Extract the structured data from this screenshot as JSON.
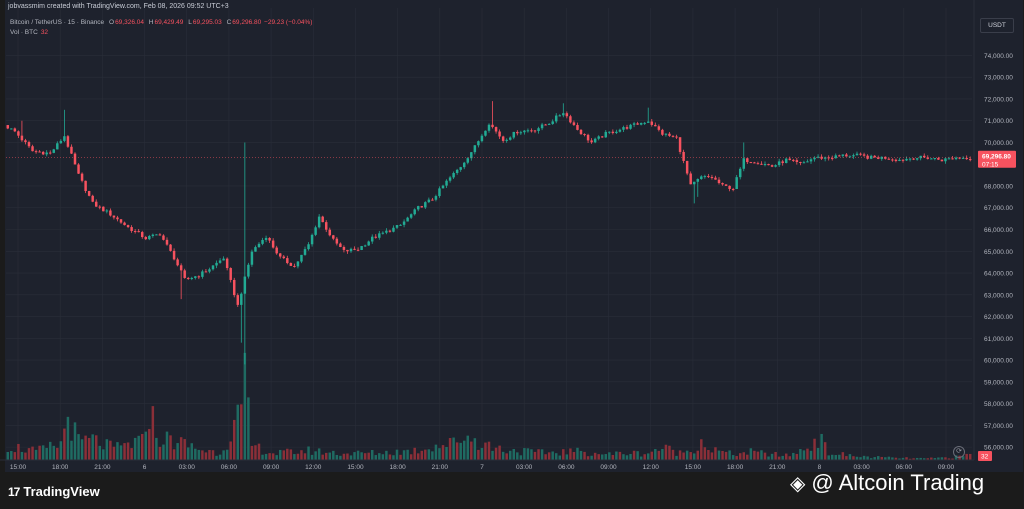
{
  "header": {
    "credit": "jobvassmim created with TradingView.com, Feb 08, 2026 09:52 UTC+3",
    "symbol": "Bitcoin / TetherUS · 15 · Binance",
    "o_label": "O",
    "o_value": "69,326.04",
    "h_label": "H",
    "h_value": "69,429.49",
    "l_label": "L",
    "l_value": "69,295.03",
    "c_label": "C",
    "c_value": "69,296.80",
    "change": "−29.23 (−0.04%)",
    "vol_label": "Vol · BTC",
    "vol_value": "32"
  },
  "currency": "USDT",
  "brand": {
    "logo": "17",
    "name": "TradingView"
  },
  "watermark": {
    "icon": "binance-diamond-icon",
    "text": "@ Altcoin Trading"
  },
  "colors": {
    "up": "#22ab94",
    "down": "#f7525f",
    "vol_up": "#1f6b62",
    "vol_down": "#8b2f38",
    "background": "#1e222d",
    "grid": "#2a2e39"
  },
  "chart_data": {
    "type": "candlestick",
    "y_ticks": [
      "74,000.00",
      "73,000.00",
      "72,000.00",
      "71,000.00",
      "70,000.00",
      "68,000.00",
      "67,000.00",
      "66,000.00",
      "65,000.00",
      "64,000.00",
      "63,000.00",
      "62,000.00",
      "61,000.00",
      "60,000.00",
      "59,000.00",
      "58,000.00",
      "57,000.00",
      "56,000.00"
    ],
    "y_tick_values": [
      74000,
      73000,
      72000,
      71000,
      70000,
      68000,
      67000,
      66000,
      65000,
      64000,
      63000,
      62000,
      61000,
      60000,
      59000,
      58000,
      57000,
      56000
    ],
    "ylim": [
      55500,
      74800
    ],
    "x_ticks": [
      "15:00",
      "18:00",
      "21:00",
      "6",
      "03:00",
      "06:00",
      "09:00",
      "12:00",
      "15:00",
      "18:00",
      "21:00",
      "7",
      "03:00",
      "06:00",
      "09:00",
      "12:00",
      "15:00",
      "18:00",
      "21:00",
      "8",
      "03:00",
      "06:00",
      "09:00"
    ],
    "last_price": "69,296.80",
    "last_price_value": 69296.8,
    "countdown": "07:15",
    "last_volume": "32",
    "anchors": [
      [
        0,
        70800
      ],
      [
        3,
        70500
      ],
      [
        8,
        69600
      ],
      [
        13,
        69500
      ],
      [
        17,
        70300
      ],
      [
        21,
        68500
      ],
      [
        25,
        67200
      ],
      [
        30,
        66700
      ],
      [
        35,
        66100
      ],
      [
        40,
        65600
      ],
      [
        44,
        65800
      ],
      [
        48,
        64700
      ],
      [
        51,
        63700
      ],
      [
        55,
        63900
      ],
      [
        58,
        64200
      ],
      [
        62,
        64700
      ],
      [
        66,
        62500
      ],
      [
        70,
        65000
      ],
      [
        74,
        65700
      ],
      [
        78,
        64700
      ],
      [
        82,
        64300
      ],
      [
        86,
        65300
      ],
      [
        89,
        66600
      ],
      [
        93,
        65500
      ],
      [
        96,
        65000
      ],
      [
        100,
        65100
      ],
      [
        104,
        65600
      ],
      [
        108,
        65900
      ],
      [
        112,
        66200
      ],
      [
        117,
        67000
      ],
      [
        121,
        67400
      ],
      [
        125,
        68200
      ],
      [
        129,
        68900
      ],
      [
        133,
        69800
      ],
      [
        137,
        70900
      ],
      [
        141,
        70100
      ],
      [
        145,
        70500
      ],
      [
        150,
        70600
      ],
      [
        154,
        70900
      ],
      [
        158,
        71400
      ],
      [
        162,
        70600
      ],
      [
        166,
        70000
      ],
      [
        170,
        70400
      ],
      [
        174,
        70600
      ],
      [
        178,
        70800
      ],
      [
        182,
        71000
      ],
      [
        186,
        70400
      ],
      [
        190,
        70200
      ],
      [
        194,
        68000
      ],
      [
        197,
        68400
      ],
      [
        200,
        68400
      ],
      [
        203,
        68000
      ],
      [
        206,
        67900
      ],
      [
        209,
        69200
      ],
      [
        213,
        69100
      ],
      [
        217,
        68900
      ],
      [
        221,
        69200
      ],
      [
        225,
        69000
      ],
      [
        229,
        69300
      ],
      [
        233,
        69300
      ],
      [
        237,
        69400
      ],
      [
        241,
        69400
      ],
      [
        245,
        69300
      ],
      [
        249,
        69300
      ],
      [
        253,
        69200
      ],
      [
        257,
        69300
      ],
      [
        261,
        69300
      ],
      [
        265,
        69200
      ],
      [
        269,
        69300
      ],
      [
        272,
        69300
      ]
    ],
    "spikes": [
      [
        4,
        71000
      ],
      [
        16,
        71500
      ],
      [
        49,
        62800
      ],
      [
        66,
        60800
      ],
      [
        67,
        59800
      ],
      [
        67,
        70000
      ],
      [
        137,
        71900
      ],
      [
        157,
        71800
      ],
      [
        181,
        71600
      ],
      [
        194,
        67200
      ],
      [
        195,
        67500
      ],
      [
        208,
        70000
      ]
    ],
    "volume_ylim": [
      0,
      100
    ],
    "volume_anchors": [
      [
        0,
        20
      ],
      [
        8,
        12
      ],
      [
        15,
        22
      ],
      [
        17,
        62
      ],
      [
        20,
        25
      ],
      [
        24,
        28
      ],
      [
        30,
        16
      ],
      [
        36,
        24
      ],
      [
        38,
        25
      ],
      [
        40,
        78
      ],
      [
        42,
        32
      ],
      [
        48,
        25
      ],
      [
        55,
        14
      ],
      [
        60,
        10
      ],
      [
        66,
        65
      ],
      [
        67,
        100
      ],
      [
        69,
        20
      ],
      [
        75,
        9
      ],
      [
        85,
        13
      ],
      [
        95,
        9
      ],
      [
        105,
        10
      ],
      [
        115,
        13
      ],
      [
        120,
        20
      ],
      [
        125,
        22
      ],
      [
        129,
        34
      ],
      [
        133,
        26
      ],
      [
        137,
        18
      ],
      [
        140,
        15
      ],
      [
        150,
        10
      ],
      [
        160,
        12
      ],
      [
        170,
        8
      ],
      [
        175,
        10
      ],
      [
        180,
        9
      ],
      [
        185,
        17
      ],
      [
        190,
        10
      ],
      [
        193,
        14
      ],
      [
        196,
        26
      ],
      [
        199,
        14
      ],
      [
        205,
        8
      ],
      [
        210,
        11
      ],
      [
        220,
        6
      ],
      [
        225,
        14
      ],
      [
        229,
        32
      ],
      [
        232,
        10
      ],
      [
        240,
        5
      ],
      [
        250,
        3
      ],
      [
        260,
        2
      ],
      [
        270,
        5
      ],
      [
        272,
        8
      ]
    ]
  }
}
